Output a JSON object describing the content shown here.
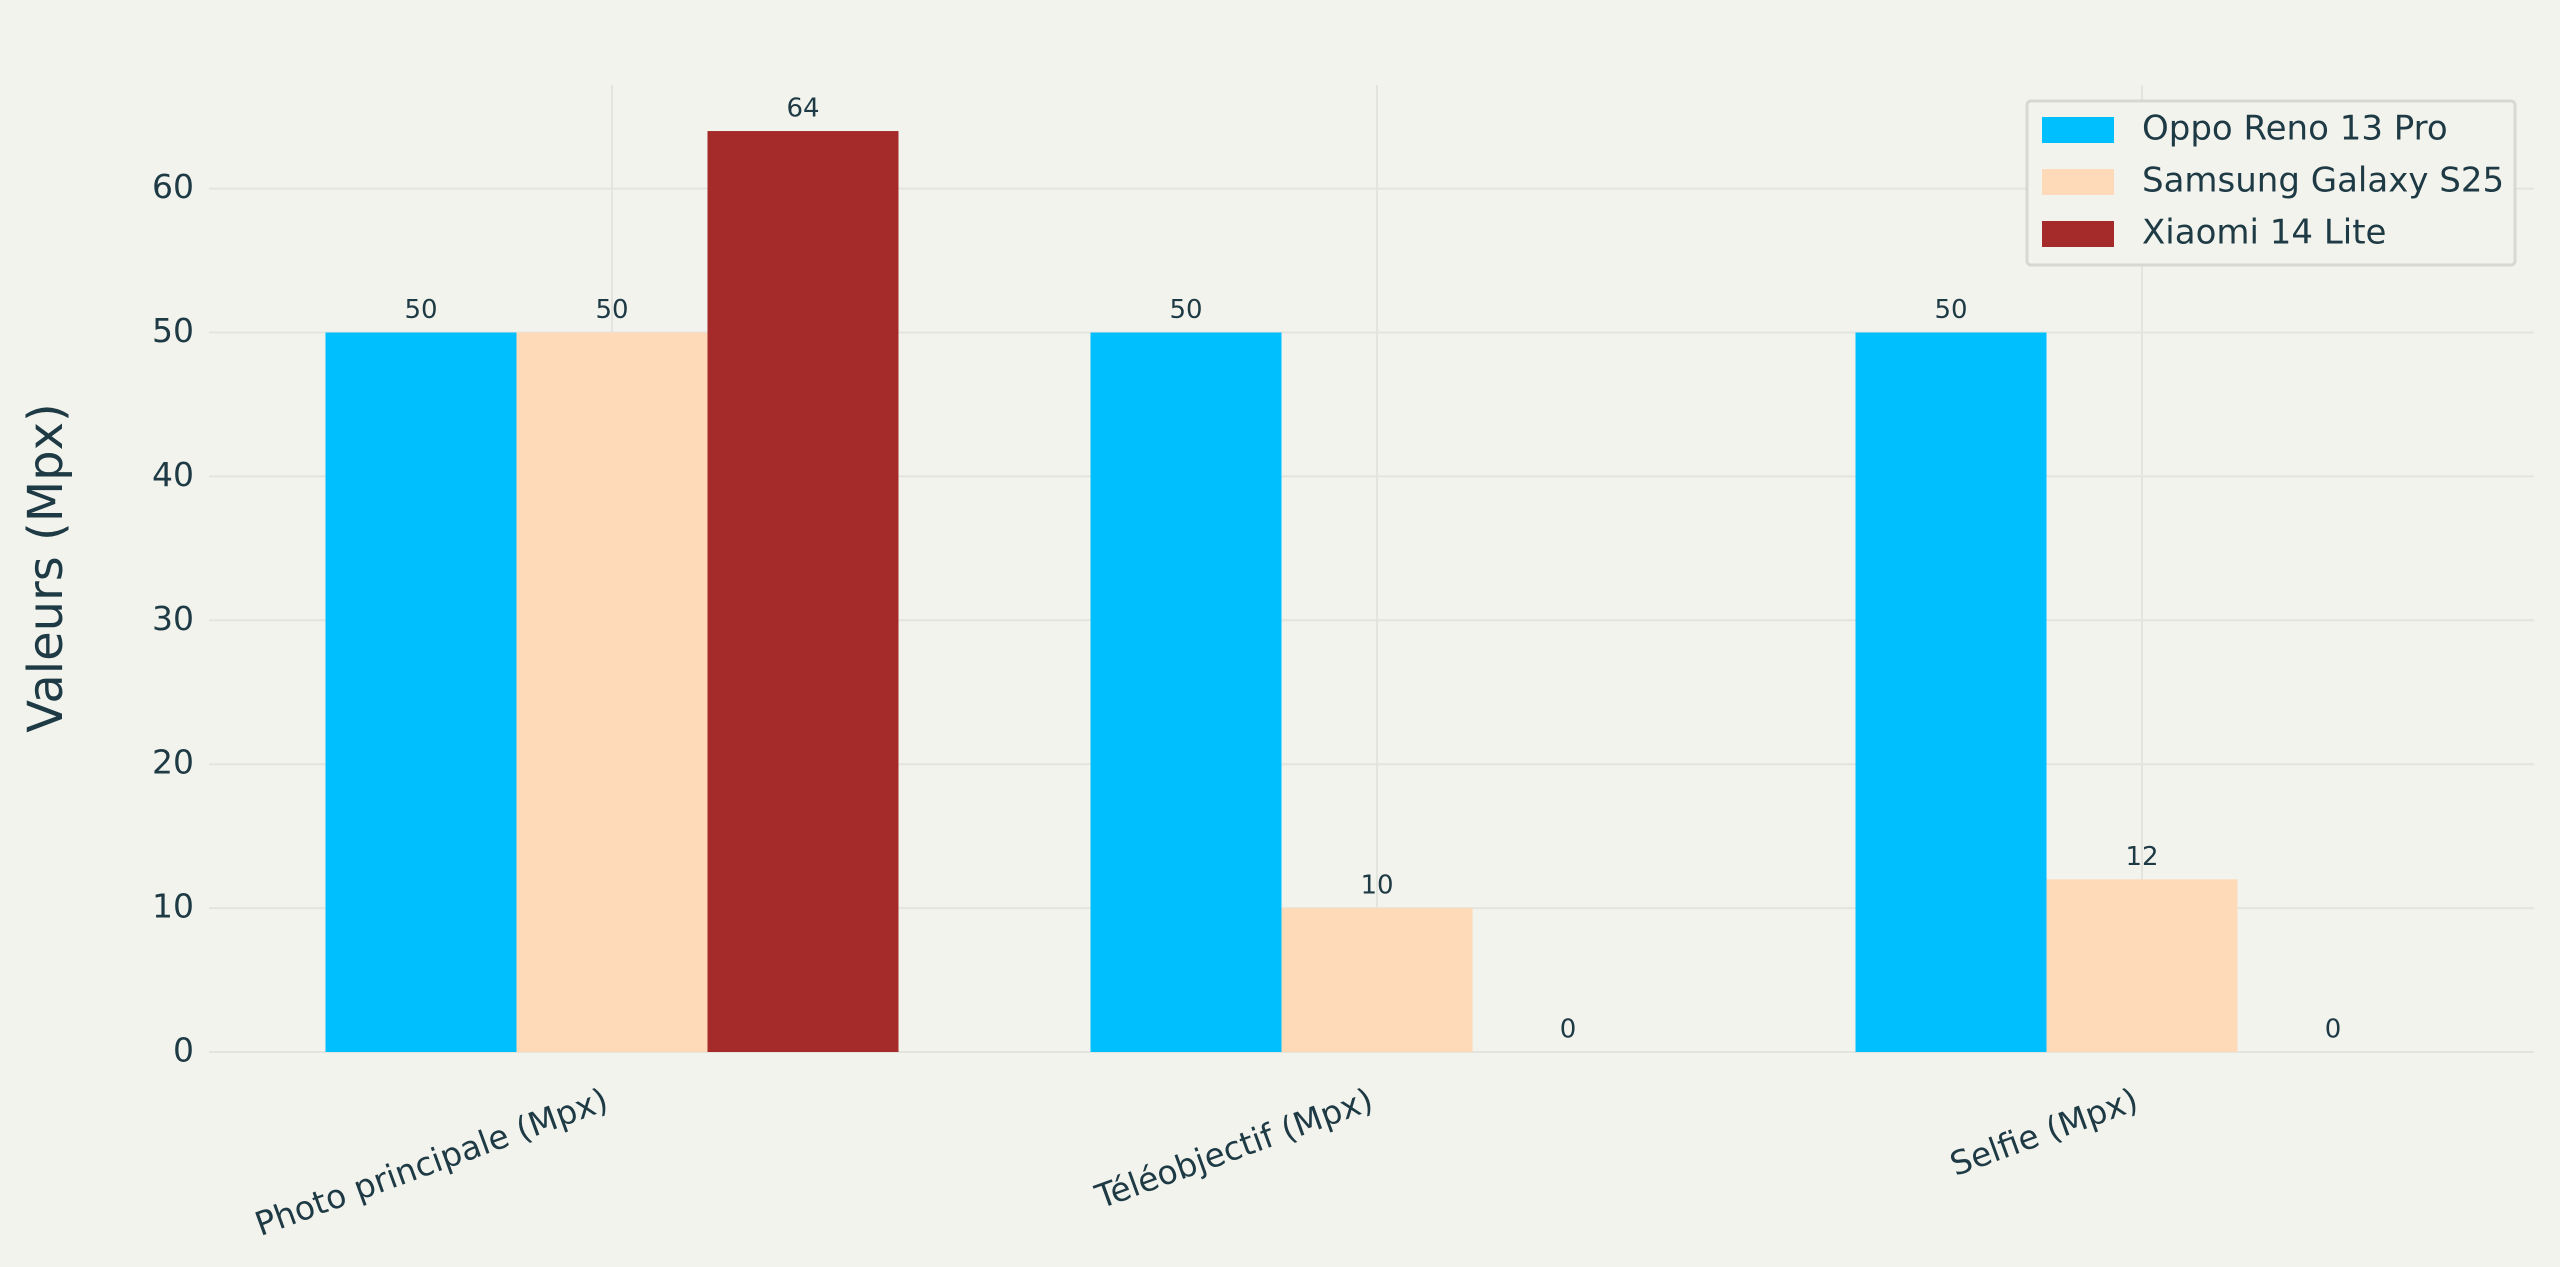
{
  "chart_data": {
    "type": "bar",
    "y_label": "Valeurs (Mpx)",
    "categories": [
      "Photo principale (Mpx)",
      "Téléobjectif (Mpx)",
      "Selfie (Mpx)"
    ],
    "series": [
      {
        "name": "Oppo Reno 13 Pro",
        "color": "#00bfff",
        "values": [
          50,
          50,
          50
        ]
      },
      {
        "name": "Samsung Galaxy S25",
        "color": "#fedab9",
        "values": [
          50,
          10,
          12
        ]
      },
      {
        "name": "Xiaomi 14 Lite",
        "color": "#a52a2a",
        "values": [
          64,
          0,
          0
        ]
      }
    ],
    "ylim": [
      0,
      67.2
    ],
    "yticks": [
      0,
      10,
      20,
      30,
      40,
      50,
      60
    ],
    "grid": true,
    "legend": "top-right"
  }
}
